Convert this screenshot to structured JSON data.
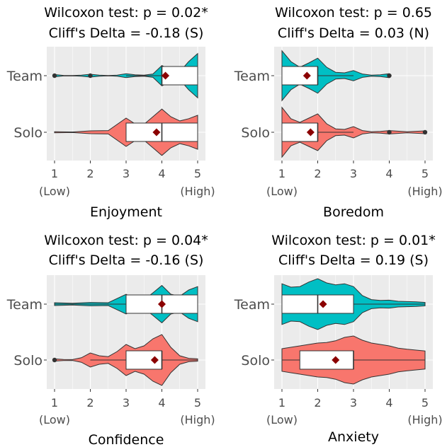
{
  "chart_data": [
    {
      "type": "violin",
      "title": [
        "Wilcoxon test: p = 0.02*",
        "Cliff's Delta = -0.18 (S)"
      ],
      "xlabel": "Enjoyment",
      "xticks": [
        "1\n(Low)",
        "2",
        "3",
        "4",
        "5\n(High)"
      ],
      "xlim": [
        1,
        5
      ],
      "groups": [
        {
          "name": "Team",
          "color": "#00BFC4",
          "q1": 4,
          "median": 4,
          "q3": 5,
          "whisker_low": 3,
          "whisker_high": 5,
          "mean": 4.1,
          "outliers": [
            1,
            2
          ],
          "density": [
            [
              1,
              0.04
            ],
            [
              1.25,
              0.01
            ],
            [
              1.5,
              0.005
            ],
            [
              1.75,
              0.02
            ],
            [
              2,
              0.05
            ],
            [
              2.25,
              0.02
            ],
            [
              2.5,
              0.005
            ],
            [
              2.75,
              0.02
            ],
            [
              3,
              0.07
            ],
            [
              3.25,
              0.03
            ],
            [
              3.5,
              0.02
            ],
            [
              3.75,
              0.06
            ],
            [
              4,
              0.36
            ],
            [
              4.25,
              0.2
            ],
            [
              4.5,
              0.14
            ],
            [
              4.75,
              0.5
            ],
            [
              5,
              0.78
            ]
          ]
        },
        {
          "name": "Solo",
          "color": "#F8766D",
          "q1": 3,
          "median": 4,
          "q3": 5,
          "whisker_low": 3,
          "whisker_high": 5,
          "mean": 3.85,
          "outliers": [],
          "density": [
            [
              1,
              0.02
            ],
            [
              1.5,
              0.01
            ],
            [
              2,
              0.05
            ],
            [
              2.5,
              0.06
            ],
            [
              3,
              0.5
            ],
            [
              3.25,
              0.3
            ],
            [
              3.5,
              0.28
            ],
            [
              3.75,
              0.55
            ],
            [
              4,
              0.82
            ],
            [
              4.25,
              0.55
            ],
            [
              4.5,
              0.4
            ],
            [
              4.75,
              0.48
            ],
            [
              5,
              0.6
            ]
          ]
        }
      ]
    },
    {
      "type": "violin",
      "title": [
        "Wilcoxon test: p = 0.65",
        "Cliff's Delta = 0.03 (N)"
      ],
      "xlabel": "Boredom",
      "xticks": [
        "1\n(Low)",
        "2",
        "3",
        "4",
        "5\n(High)"
      ],
      "xlim": [
        1,
        5
      ],
      "groups": [
        {
          "name": "Team",
          "color": "#00BFC4",
          "q1": 1,
          "median": 2,
          "q3": 2,
          "whisker_low": 1,
          "whisker_high": 3,
          "mean": 1.7,
          "outliers": [
            4
          ],
          "density": [
            [
              1,
              0.88
            ],
            [
              1.25,
              0.5
            ],
            [
              1.5,
              0.3
            ],
            [
              1.75,
              0.45
            ],
            [
              2,
              0.62
            ],
            [
              2.25,
              0.3
            ],
            [
              2.5,
              0.12
            ],
            [
              2.75,
              0.1
            ],
            [
              3,
              0.18
            ],
            [
              3.25,
              0.06
            ],
            [
              3.5,
              0.02
            ],
            [
              3.75,
              0.03
            ],
            [
              4,
              0.07
            ],
            [
              4.05,
              0.0
            ]
          ]
        },
        {
          "name": "Solo",
          "color": "#F8766D",
          "q1": 1,
          "median": 2,
          "q3": 2,
          "whisker_low": 1,
          "whisker_high": 3,
          "mean": 1.8,
          "outliers": [
            4,
            5
          ],
          "density": [
            [
              1,
              0.88
            ],
            [
              1.25,
              0.48
            ],
            [
              1.5,
              0.35
            ],
            [
              1.75,
              0.5
            ],
            [
              2,
              0.65
            ],
            [
              2.25,
              0.3
            ],
            [
              2.5,
              0.12
            ],
            [
              2.75,
              0.1
            ],
            [
              3,
              0.2
            ],
            [
              3.25,
              0.06
            ],
            [
              3.5,
              0.02
            ],
            [
              3.75,
              0.03
            ],
            [
              4,
              0.06
            ],
            [
              4.5,
              0.02
            ],
            [
              5,
              0.05
            ]
          ]
        }
      ]
    },
    {
      "type": "violin",
      "title": [
        "Wilcoxon test: p = 0.04*",
        "Cliff's Delta = -0.16 (S)"
      ],
      "xlabel": "Confidence",
      "xticks": [
        "1\n(Low)",
        "2",
        "3",
        "4",
        "5\n(High)"
      ],
      "xlim": [
        1,
        5
      ],
      "groups": [
        {
          "name": "Team",
          "color": "#00BFC4",
          "q1": 3,
          "median": 4,
          "q3": 5,
          "whisker_low": 1,
          "whisker_high": 5,
          "mean": 4.0,
          "outliers": [],
          "density": [
            [
              1,
              0.05
            ],
            [
              1.5,
              0.03
            ],
            [
              2,
              0.06
            ],
            [
              2.5,
              0.05
            ],
            [
              3,
              0.35
            ],
            [
              3.25,
              0.18
            ],
            [
              3.5,
              0.15
            ],
            [
              3.75,
              0.4
            ],
            [
              4,
              0.66
            ],
            [
              4.25,
              0.35
            ],
            [
              4.5,
              0.28
            ],
            [
              4.75,
              0.5
            ],
            [
              5,
              0.62
            ]
          ]
        },
        {
          "name": "Solo",
          "color": "#F8766D",
          "q1": 3,
          "median": 4,
          "q3": 4,
          "whisker_low": 2,
          "whisker_high": 5,
          "mean": 3.8,
          "outliers": [
            1
          ],
          "density": [
            [
              1,
              0.04
            ],
            [
              1.25,
              0.02
            ],
            [
              1.5,
              0.015
            ],
            [
              1.75,
              0.08
            ],
            [
              2,
              0.25
            ],
            [
              2.25,
              0.15
            ],
            [
              2.5,
              0.12
            ],
            [
              2.75,
              0.3
            ],
            [
              3,
              0.55
            ],
            [
              3.25,
              0.4
            ],
            [
              3.5,
              0.5
            ],
            [
              3.75,
              0.75
            ],
            [
              4,
              0.9
            ],
            [
              4.25,
              0.45
            ],
            [
              4.5,
              0.15
            ],
            [
              4.75,
              0.06
            ],
            [
              5,
              0.04
            ]
          ]
        }
      ]
    },
    {
      "type": "violin",
      "title": [
        "Wilcoxon test: p = 0.01*",
        "Cliff's Delta = 0.19 (S)"
      ],
      "xlabel": "Anxiety",
      "xticks": [
        "1\n(Low)",
        "2",
        "3",
        "4",
        "5\n(High)"
      ],
      "xlim": [
        1,
        5
      ],
      "groups": [
        {
          "name": "Team",
          "color": "#00BFC4",
          "q1": 1,
          "median": 2,
          "q3": 3,
          "whisker_low": 1,
          "whisker_high": 5,
          "mean": 2.15,
          "outliers": [],
          "density": [
            [
              1,
              0.72
            ],
            [
              1.25,
              0.6
            ],
            [
              1.5,
              0.62
            ],
            [
              1.75,
              0.78
            ],
            [
              2,
              0.9
            ],
            [
              2.25,
              0.75
            ],
            [
              2.5,
              0.68
            ],
            [
              2.75,
              0.72
            ],
            [
              3,
              0.62
            ],
            [
              3.25,
              0.3
            ],
            [
              3.5,
              0.16
            ],
            [
              3.75,
              0.13
            ],
            [
              4,
              0.14
            ],
            [
              4.25,
              0.1
            ],
            [
              4.5,
              0.09
            ],
            [
              4.75,
              0.08
            ],
            [
              5,
              0.06
            ]
          ]
        },
        {
          "name": "Solo",
          "color": "#F8766D",
          "q1": 1.5,
          "median": 3,
          "q3": 3,
          "whisker_low": 1,
          "whisker_high": 5,
          "mean": 2.5,
          "outliers": [],
          "density": [
            [
              1,
              0.4
            ],
            [
              1.25,
              0.45
            ],
            [
              1.5,
              0.5
            ],
            [
              1.75,
              0.55
            ],
            [
              2,
              0.6
            ],
            [
              2.25,
              0.62
            ],
            [
              2.5,
              0.68
            ],
            [
              2.75,
              0.8
            ],
            [
              3,
              0.85
            ],
            [
              3.25,
              0.7
            ],
            [
              3.5,
              0.6
            ],
            [
              3.75,
              0.55
            ],
            [
              4,
              0.5
            ],
            [
              4.25,
              0.42
            ],
            [
              4.5,
              0.38
            ],
            [
              4.75,
              0.35
            ],
            [
              5,
              0.32
            ]
          ]
        }
      ]
    }
  ]
}
